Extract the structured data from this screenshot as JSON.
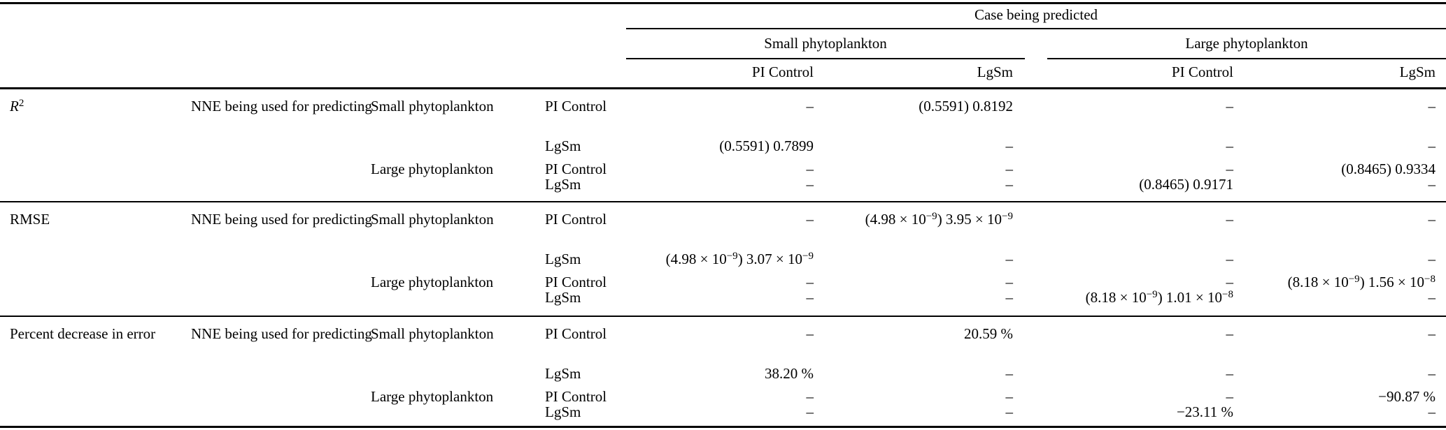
{
  "table": {
    "case_header": "Case being predicted",
    "col_groups": [
      {
        "label": "Small phytoplankton"
      },
      {
        "label": "Large phytoplankton"
      }
    ],
    "col_headers": [
      "PI Control",
      "LgSm",
      "PI Control",
      "LgSm"
    ],
    "blocks": [
      {
        "metric": "R^{2}",
        "nne_label": "NNE being used for predicting",
        "rows": [
          {
            "group": "Small phytoplankton",
            "case": "PI Control",
            "values": [
              "–",
              "(0.5591) 0.8192",
              "–",
              "–"
            ]
          },
          {
            "group": "",
            "case": "LgSm",
            "values": [
              "(0.5591) 0.7899",
              "–",
              "–",
              "–"
            ]
          },
          {
            "group": "Large phytoplankton",
            "case": "PI Control",
            "values": [
              "–",
              "–",
              "–",
              "(0.8465) 0.9334"
            ]
          },
          {
            "group": "",
            "case": "LgSm",
            "values": [
              "–",
              "–",
              "(0.8465) 0.9171",
              "–"
            ]
          }
        ]
      },
      {
        "metric": "RMSE",
        "nne_label": "NNE being used for predicting",
        "rows": [
          {
            "group": "Small phytoplankton",
            "case": "PI Control",
            "values": [
              "–",
              "(4.98 × 10^{−9}) 3.95 × 10^{−9}",
              "–",
              "–"
            ]
          },
          {
            "group": "",
            "case": "LgSm",
            "values": [
              "(4.98 × 10^{−9}) 3.07 × 10^{−9}",
              "–",
              "–",
              "–"
            ]
          },
          {
            "group": "Large phytoplankton",
            "case": "PI Control",
            "values": [
              "–",
              "–",
              "–",
              "(8.18 × 10^{−9}) 1.56 × 10^{−8}"
            ]
          },
          {
            "group": "",
            "case": "LgSm",
            "values": [
              "–",
              "–",
              "(8.18 × 10^{−9}) 1.01 × 10^{−8}",
              "–"
            ]
          }
        ]
      },
      {
        "metric": "Percent decrease in error",
        "nne_label": "NNE being used for predicting",
        "rows": [
          {
            "group": "Small phytoplankton",
            "case": "PI Control",
            "values": [
              "–",
              "20.59 %",
              "–",
              "–"
            ]
          },
          {
            "group": "",
            "case": "LgSm",
            "values": [
              "38.20 %",
              "–",
              "–",
              "–"
            ]
          },
          {
            "group": "Large phytoplankton",
            "case": "PI Control",
            "values": [
              "–",
              "–",
              "–",
              "−90.87 %"
            ]
          },
          {
            "group": "",
            "case": "LgSm",
            "values": [
              "–",
              "–",
              "−23.11 %",
              "–"
            ]
          }
        ]
      }
    ]
  }
}
